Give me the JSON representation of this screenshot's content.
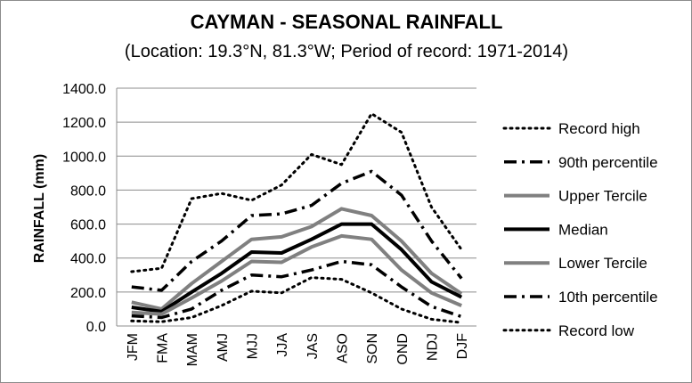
{
  "chart_data": {
    "type": "line",
    "title": "CAYMAN - SEASONAL RAINFALL",
    "subtitle": "(Location: 19.3°N, 81.3°W; Period of record: 1971-2014)",
    "xlabel": "",
    "ylabel": "RAINFALL (mm)",
    "ylim": [
      0,
      1400
    ],
    "ytick_step": 200,
    "ytick_labels": [
      "0.0",
      "200.0",
      "400.0",
      "600.0",
      "800.0",
      "1000.0",
      "1200.0",
      "1400.0"
    ],
    "grid": true,
    "legend_position": "right",
    "categories": [
      "JFM",
      "FMA",
      "MAM",
      "AMJ",
      "MJJ",
      "JJA",
      "JAS",
      "ASO",
      "SON",
      "OND",
      "NDJ",
      "DJF"
    ],
    "series": [
      {
        "name": "Record high",
        "style": "dotted",
        "color": "#000000",
        "values": [
          320,
          340,
          750,
          780,
          740,
          830,
          1010,
          950,
          1250,
          1140,
          700,
          450
        ]
      },
      {
        "name": "90th percentile",
        "style": "dashdot",
        "color": "#000000",
        "values": [
          230,
          210,
          380,
          500,
          650,
          660,
          710,
          840,
          910,
          770,
          500,
          280
        ]
      },
      {
        "name": "Upper Tercile",
        "style": "solid-gray",
        "color": "#808080",
        "values": [
          140,
          100,
          250,
          380,
          510,
          525,
          585,
          690,
          650,
          500,
          310,
          190
        ]
      },
      {
        "name": "Median",
        "style": "solid-black",
        "color": "#000000",
        "values": [
          110,
          85,
          200,
          310,
          435,
          430,
          510,
          600,
          600,
          450,
          260,
          170
        ]
      },
      {
        "name": "Lower Tercile",
        "style": "solid-gray",
        "color": "#808080",
        "values": [
          80,
          70,
          165,
          265,
          380,
          375,
          465,
          530,
          510,
          330,
          195,
          120
        ]
      },
      {
        "name": "10th percentile",
        "style": "dashdot",
        "color": "#000000",
        "values": [
          60,
          50,
          100,
          210,
          300,
          290,
          330,
          380,
          360,
          230,
          115,
          55
        ]
      },
      {
        "name": "Record low",
        "style": "dotted",
        "color": "#000000",
        "values": [
          30,
          25,
          50,
          120,
          205,
          195,
          285,
          275,
          195,
          100,
          40,
          20
        ]
      }
    ]
  }
}
